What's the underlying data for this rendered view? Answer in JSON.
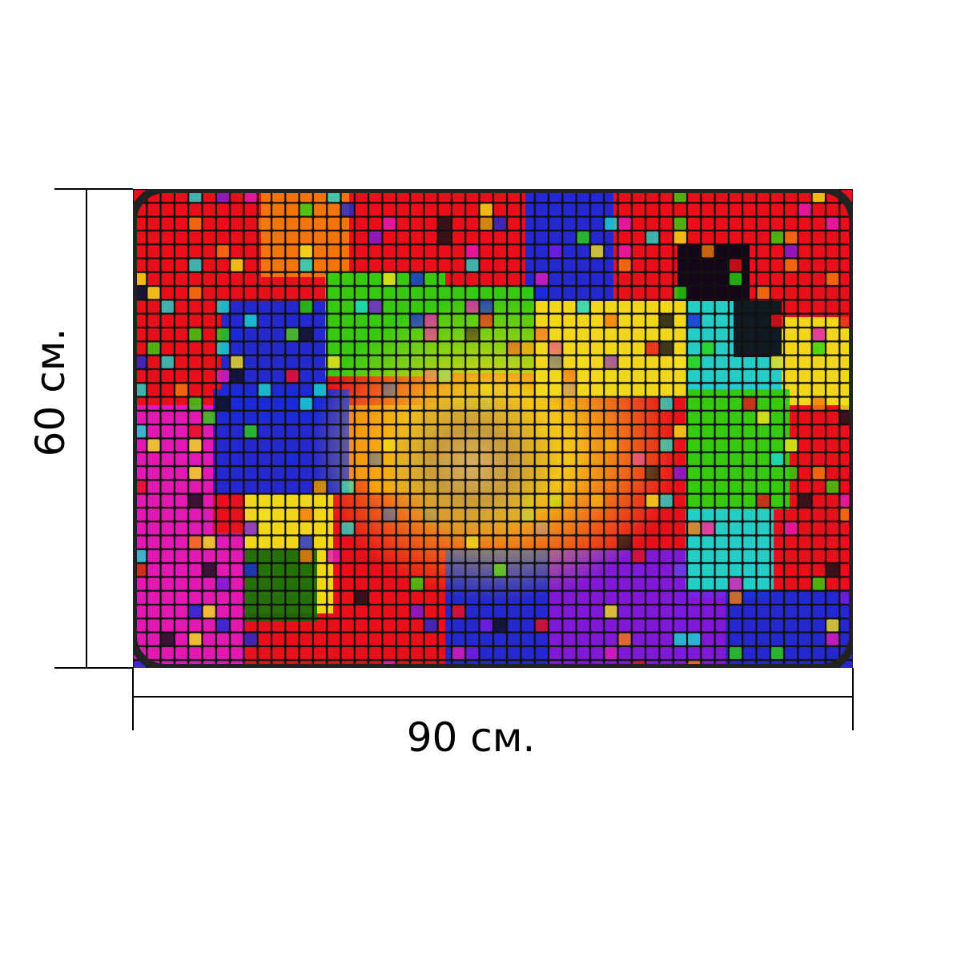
{
  "product": {
    "width_label": "90 см.",
    "height_label": "60 см.",
    "artwork": "abstract-colorful-mosaic-swirl"
  },
  "palette": {
    "red": "#e8101a",
    "orange": "#f47a0c",
    "yellow": "#f2e21a",
    "green": "#2cd40f",
    "cyan": "#19d8d0",
    "blue": "#1a2ad8",
    "violet": "#7a1ae0",
    "magenta": "#e01ab8",
    "gold": "#c8a040",
    "dark": "#101018"
  }
}
